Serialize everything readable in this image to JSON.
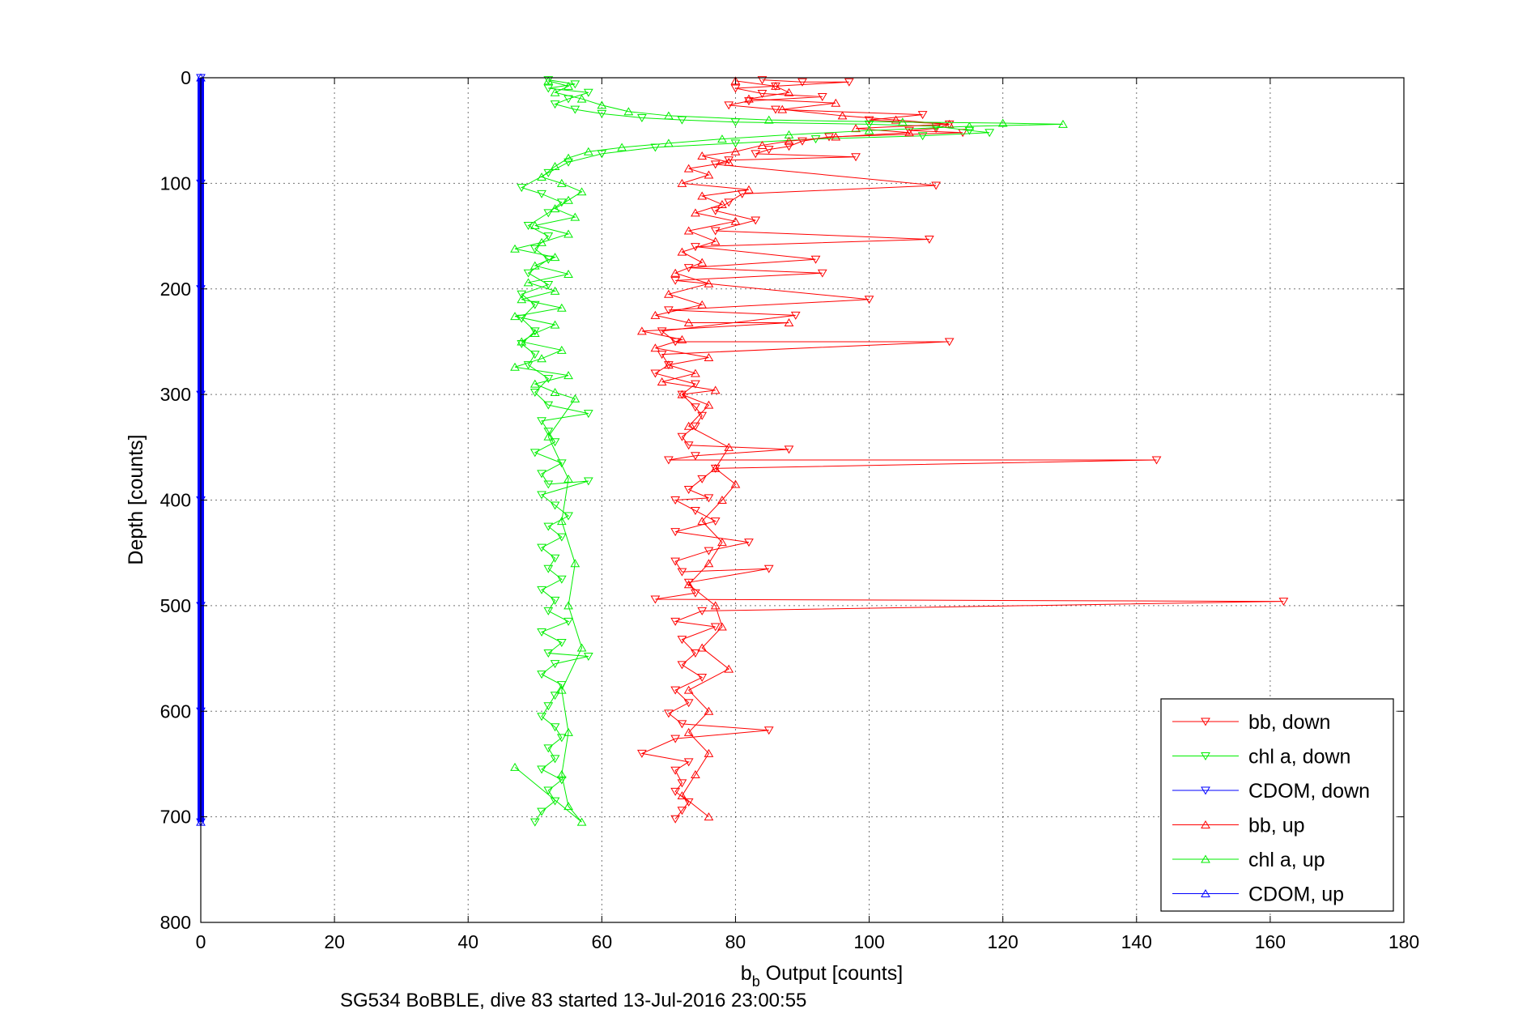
{
  "caption": "SG534 BoBBLE, dive 83 started 13-Jul-2016 23:00:55",
  "chart_data": {
    "type": "scatter",
    "xlabel_main": "b",
    "xlabel_sub": "b",
    "xlabel_rest": " Output [counts]",
    "ylabel": "Depth [counts]",
    "xlim": [
      0,
      180
    ],
    "ylim": [
      0,
      800
    ],
    "y_reversed": true,
    "grid": true,
    "legend_position": "bottom-right",
    "xticks": [
      0,
      20,
      40,
      60,
      80,
      100,
      120,
      140,
      160,
      180
    ],
    "yticks": [
      0,
      100,
      200,
      300,
      400,
      500,
      600,
      700,
      800
    ],
    "series": [
      {
        "name": "bb, down",
        "color": "#ff0000",
        "marker": "triangle-down",
        "points": [
          [
            84,
            2
          ],
          [
            90,
            4
          ],
          [
            97,
            4
          ],
          [
            86,
            8
          ],
          [
            80,
            10
          ],
          [
            84,
            15
          ],
          [
            93,
            18
          ],
          [
            82,
            22
          ],
          [
            79,
            26
          ],
          [
            86,
            30
          ],
          [
            108,
            35
          ],
          [
            100,
            40
          ],
          [
            112,
            44
          ],
          [
            110,
            48
          ],
          [
            106,
            50
          ],
          [
            114,
            52
          ],
          [
            94,
            56
          ],
          [
            90,
            60
          ],
          [
            88,
            65
          ],
          [
            85,
            68
          ],
          [
            83,
            72
          ],
          [
            98,
            75
          ],
          [
            79,
            78
          ],
          [
            77,
            82
          ],
          [
            110,
            102
          ],
          [
            81,
            110
          ],
          [
            79,
            118
          ],
          [
            77,
            126
          ],
          [
            83,
            135
          ],
          [
            77,
            145
          ],
          [
            109,
            153
          ],
          [
            74,
            160
          ],
          [
            92,
            172
          ],
          [
            73,
            180
          ],
          [
            93,
            185
          ],
          [
            71,
            192
          ],
          [
            100,
            210
          ],
          [
            70,
            220
          ],
          [
            89,
            225
          ],
          [
            69,
            240
          ],
          [
            71,
            250
          ],
          [
            112,
            250
          ],
          [
            69,
            262
          ],
          [
            70,
            272
          ],
          [
            68,
            280
          ],
          [
            74,
            290
          ],
          [
            72,
            300
          ],
          [
            74,
            312
          ],
          [
            75,
            320
          ],
          [
            74,
            330
          ],
          [
            72,
            340
          ],
          [
            73,
            348
          ],
          [
            88,
            352
          ],
          [
            74,
            358
          ],
          [
            70,
            362
          ],
          [
            143,
            362
          ],
          [
            77,
            370
          ],
          [
            75,
            380
          ],
          [
            73,
            390
          ],
          [
            76,
            398
          ],
          [
            71,
            400
          ],
          [
            74,
            410
          ],
          [
            77,
            420
          ],
          [
            71,
            430
          ],
          [
            82,
            440
          ],
          [
            76,
            448
          ],
          [
            71,
            458
          ],
          [
            72,
            468
          ],
          [
            85,
            465
          ],
          [
            73,
            478
          ],
          [
            74,
            488
          ],
          [
            68,
            494
          ],
          [
            162,
            496
          ],
          [
            75,
            505
          ],
          [
            71,
            515
          ],
          [
            77,
            520
          ],
          [
            72,
            532
          ],
          [
            74,
            545
          ],
          [
            72,
            556
          ],
          [
            75,
            568
          ],
          [
            71,
            580
          ],
          [
            73,
            592
          ],
          [
            70,
            602
          ],
          [
            72,
            612
          ],
          [
            85,
            618
          ],
          [
            71,
            626
          ],
          [
            66,
            640
          ],
          [
            73,
            648
          ],
          [
            71,
            656
          ],
          [
            72,
            668
          ],
          [
            71,
            676
          ],
          [
            73,
            686
          ],
          [
            72,
            694
          ],
          [
            71,
            702
          ]
        ]
      },
      {
        "name": "chl a, down",
        "color": "#00ee00",
        "marker": "triangle-down",
        "points": [
          [
            52,
            2
          ],
          [
            56,
            6
          ],
          [
            52,
            10
          ],
          [
            58,
            14
          ],
          [
            55,
            20
          ],
          [
            53,
            25
          ],
          [
            56,
            30
          ],
          [
            60,
            34
          ],
          [
            66,
            38
          ],
          [
            72,
            40
          ],
          [
            80,
            42
          ],
          [
            100,
            44
          ],
          [
            110,
            46
          ],
          [
            115,
            50
          ],
          [
            118,
            52
          ],
          [
            108,
            55
          ],
          [
            92,
            58
          ],
          [
            80,
            62
          ],
          [
            68,
            66
          ],
          [
            60,
            72
          ],
          [
            55,
            80
          ],
          [
            52,
            90
          ],
          [
            48,
            104
          ],
          [
            51,
            110
          ],
          [
            54,
            118
          ],
          [
            52,
            128
          ],
          [
            49,
            140
          ],
          [
            52,
            150
          ],
          [
            50,
            162
          ],
          [
            52,
            172
          ],
          [
            49,
            185
          ],
          [
            52,
            196
          ],
          [
            48,
            205
          ],
          [
            50,
            215
          ],
          [
            48,
            228
          ],
          [
            50,
            240
          ],
          [
            48,
            252
          ],
          [
            50,
            262
          ],
          [
            49,
            272
          ],
          [
            52,
            285
          ],
          [
            50,
            298
          ],
          [
            52,
            310
          ],
          [
            58,
            318
          ],
          [
            51,
            325
          ],
          [
            52,
            335
          ],
          [
            53,
            345
          ],
          [
            50,
            355
          ],
          [
            54,
            365
          ],
          [
            51,
            375
          ],
          [
            52,
            385
          ],
          [
            58,
            382
          ],
          [
            51,
            395
          ],
          [
            53,
            405
          ],
          [
            55,
            415
          ],
          [
            52,
            425
          ],
          [
            54,
            435
          ],
          [
            51,
            445
          ],
          [
            53,
            455
          ],
          [
            52,
            465
          ],
          [
            54,
            475
          ],
          [
            51,
            485
          ],
          [
            53,
            495
          ],
          [
            52,
            505
          ],
          [
            55,
            515
          ],
          [
            51,
            525
          ],
          [
            54,
            535
          ],
          [
            52,
            545
          ],
          [
            58,
            548
          ],
          [
            53,
            555
          ],
          [
            51,
            565
          ],
          [
            54,
            575
          ],
          [
            53,
            585
          ],
          [
            52,
            595
          ],
          [
            51,
            605
          ],
          [
            53,
            615
          ],
          [
            54,
            625
          ],
          [
            52,
            635
          ],
          [
            53,
            645
          ],
          [
            51,
            655
          ],
          [
            54,
            665
          ],
          [
            52,
            675
          ],
          [
            53,
            685
          ],
          [
            51,
            695
          ],
          [
            50,
            705
          ]
        ]
      },
      {
        "name": "CDOM, down",
        "color": "#0000ff",
        "marker": "triangle-down",
        "points": [
          [
            0,
            0
          ],
          [
            0,
            100
          ],
          [
            0,
            200
          ],
          [
            0,
            300
          ],
          [
            0,
            400
          ],
          [
            0,
            500
          ],
          [
            0,
            600
          ],
          [
            0,
            705
          ]
        ]
      },
      {
        "name": "bb, up",
        "color": "#ff0000",
        "marker": "triangle-up",
        "points": [
          [
            80,
            3
          ],
          [
            86,
            8
          ],
          [
            88,
            14
          ],
          [
            82,
            20
          ],
          [
            95,
            24
          ],
          [
            87,
            30
          ],
          [
            96,
            36
          ],
          [
            104,
            40
          ],
          [
            112,
            44
          ],
          [
            98,
            48
          ],
          [
            106,
            52
          ],
          [
            95,
            56
          ],
          [
            88,
            60
          ],
          [
            84,
            64
          ],
          [
            80,
            70
          ],
          [
            75,
            74
          ],
          [
            79,
            80
          ],
          [
            73,
            86
          ],
          [
            76,
            92
          ],
          [
            72,
            100
          ],
          [
            82,
            106
          ],
          [
            75,
            112
          ],
          [
            78,
            120
          ],
          [
            74,
            128
          ],
          [
            80,
            136
          ],
          [
            73,
            145
          ],
          [
            77,
            155
          ],
          [
            72,
            165
          ],
          [
            75,
            175
          ],
          [
            71,
            185
          ],
          [
            76,
            195
          ],
          [
            70,
            205
          ],
          [
            75,
            215
          ],
          [
            68,
            225
          ],
          [
            73,
            232
          ],
          [
            88,
            232
          ],
          [
            66,
            240
          ],
          [
            72,
            248
          ],
          [
            68,
            256
          ],
          [
            76,
            265
          ],
          [
            70,
            272
          ],
          [
            74,
            280
          ],
          [
            69,
            288
          ],
          [
            77,
            296
          ],
          [
            72,
            300
          ],
          [
            76,
            310
          ],
          [
            73,
            330
          ],
          [
            79,
            350
          ],
          [
            77,
            370
          ],
          [
            80,
            385
          ],
          [
            78,
            400
          ],
          [
            75,
            420
          ],
          [
            78,
            440
          ],
          [
            76,
            460
          ],
          [
            73,
            480
          ],
          [
            77,
            500
          ],
          [
            78,
            520
          ],
          [
            75,
            540
          ],
          [
            79,
            560
          ],
          [
            73,
            580
          ],
          [
            76,
            600
          ],
          [
            73,
            620
          ],
          [
            76,
            640
          ],
          [
            74,
            660
          ],
          [
            72,
            680
          ],
          [
            76,
            700
          ]
        ]
      },
      {
        "name": "chl a, up",
        "color": "#00ee00",
        "marker": "triangle-up",
        "points": [
          [
            52,
            3
          ],
          [
            55,
            8
          ],
          [
            53,
            14
          ],
          [
            57,
            20
          ],
          [
            60,
            26
          ],
          [
            64,
            32
          ],
          [
            70,
            36
          ],
          [
            85,
            40
          ],
          [
            105,
            42
          ],
          [
            120,
            43
          ],
          [
            129,
            44
          ],
          [
            115,
            46
          ],
          [
            100,
            50
          ],
          [
            88,
            54
          ],
          [
            78,
            58
          ],
          [
            70,
            62
          ],
          [
            63,
            66
          ],
          [
            58,
            70
          ],
          [
            55,
            76
          ],
          [
            53,
            84
          ],
          [
            51,
            94
          ],
          [
            54,
            100
          ],
          [
            57,
            108
          ],
          [
            55,
            116
          ],
          [
            53,
            124
          ],
          [
            56,
            132
          ],
          [
            50,
            140
          ],
          [
            55,
            148
          ],
          [
            51,
            156
          ],
          [
            47,
            162
          ],
          [
            53,
            170
          ],
          [
            50,
            178
          ],
          [
            55,
            186
          ],
          [
            49,
            194
          ],
          [
            53,
            202
          ],
          [
            48,
            210
          ],
          [
            54,
            218
          ],
          [
            47,
            226
          ],
          [
            53,
            234
          ],
          [
            50,
            242
          ],
          [
            48,
            250
          ],
          [
            54,
            258
          ],
          [
            51,
            266
          ],
          [
            47,
            274
          ],
          [
            55,
            282
          ],
          [
            50,
            290
          ],
          [
            53,
            298
          ],
          [
            56,
            304
          ],
          [
            52,
            340
          ],
          [
            55,
            380
          ],
          [
            54,
            420
          ],
          [
            56,
            460
          ],
          [
            55,
            500
          ],
          [
            57,
            540
          ],
          [
            54,
            580
          ],
          [
            55,
            620
          ],
          [
            54,
            660
          ],
          [
            55,
            690
          ],
          [
            57,
            705
          ],
          [
            47,
            653
          ]
        ]
      },
      {
        "name": "CDOM, up",
        "color": "#0000ff",
        "marker": "triangle-up",
        "points": [
          [
            0,
            0
          ],
          [
            0,
            705
          ]
        ]
      }
    ]
  }
}
